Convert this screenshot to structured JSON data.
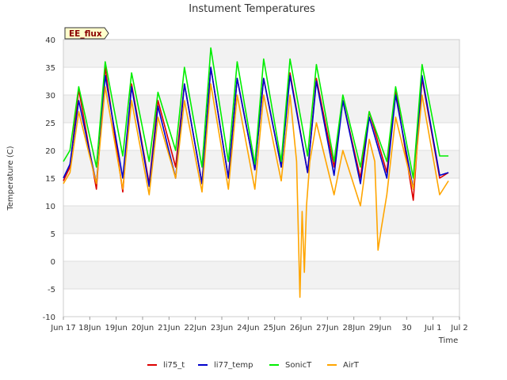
{
  "chart_data": {
    "type": "line",
    "title": "Instument Temperatures",
    "xlabel": "Time",
    "ylabel": "Temperature (C)",
    "badge": "EE_flux",
    "ylim": [
      -10,
      40
    ],
    "xlim": [
      "2024-06-17",
      "2024-07-02"
    ],
    "y_ticks": [
      -10,
      -5,
      0,
      5,
      10,
      15,
      20,
      25,
      30,
      35,
      40
    ],
    "x_ticks": [
      {
        "label": "Jun 17",
        "date": "2024-06-17"
      },
      {
        "label": "18Jun",
        "date": "2024-06-18"
      },
      {
        "label": "19Jun",
        "date": "2024-06-19"
      },
      {
        "label": "20Jun",
        "date": "2024-06-20"
      },
      {
        "label": "21Jun",
        "date": "2024-06-21"
      },
      {
        "label": "22Jun",
        "date": "2024-06-22"
      },
      {
        "label": "23Jun",
        "date": "2024-06-23"
      },
      {
        "label": "24Jun",
        "date": "2024-06-24"
      },
      {
        "label": "25Jun",
        "date": "2024-06-25"
      },
      {
        "label": "26Jun",
        "date": "2024-06-26"
      },
      {
        "label": "27Jun",
        "date": "2024-06-27"
      },
      {
        "label": "28Jun",
        "date": "2024-06-28"
      },
      {
        "label": "29Jun",
        "date": "2024-06-29"
      },
      {
        "label": "30",
        "date": "2024-06-30"
      },
      {
        "label": "Jul 1",
        "date": "2024-07-01"
      },
      {
        "label": "Jul 2",
        "date": "2024-07-02"
      }
    ],
    "grid": true,
    "background_bands": true,
    "legend_position": "bottom",
    "series": [
      {
        "name": "li75_t",
        "color": "#dd0000",
        "x": [
          "2024-06-17 00:00",
          "2024-06-17 06:00",
          "2024-06-17 14:00",
          "2024-06-18 06:00",
          "2024-06-18 14:00",
          "2024-06-19 06:00",
          "2024-06-19 14:00",
          "2024-06-20 06:00",
          "2024-06-20 14:00",
          "2024-06-21 06:00",
          "2024-06-21 14:00",
          "2024-06-22 06:00",
          "2024-06-22 14:00",
          "2024-06-23 06:00",
          "2024-06-23 14:00",
          "2024-06-24 06:00",
          "2024-06-24 14:00",
          "2024-06-25 06:00",
          "2024-06-25 14:00",
          "2024-06-26 06:00",
          "2024-06-26 14:00",
          "2024-06-27 06:00",
          "2024-06-27 14:00",
          "2024-06-28 06:00",
          "2024-06-28 14:00",
          "2024-06-29 06:00",
          "2024-06-29 14:00",
          "2024-06-30 06:00",
          "2024-06-30 14:00",
          "2024-07-01 06:00",
          "2024-07-01 14:00"
        ],
        "y": [
          14.5,
          17,
          31,
          13,
          35,
          12.5,
          32,
          14,
          29,
          17,
          32,
          14,
          35,
          15,
          33,
          16.5,
          33,
          17,
          34,
          16,
          33,
          17,
          29,
          15,
          27,
          16,
          31,
          11,
          33,
          15,
          16
        ]
      },
      {
        "name": "li77_temp",
        "color": "#0000cc",
        "x": [
          "2024-06-17 00:00",
          "2024-06-17 06:00",
          "2024-06-17 14:00",
          "2024-06-18 06:00",
          "2024-06-18 14:00",
          "2024-06-19 06:00",
          "2024-06-19 14:00",
          "2024-06-20 06:00",
          "2024-06-20 14:00",
          "2024-06-21 06:00",
          "2024-06-21 14:00",
          "2024-06-22 06:00",
          "2024-06-22 14:00",
          "2024-06-23 06:00",
          "2024-06-23 14:00",
          "2024-06-24 06:00",
          "2024-06-24 14:00",
          "2024-06-25 06:00",
          "2024-06-25 14:00",
          "2024-06-26 06:00",
          "2024-06-26 14:00",
          "2024-06-27 06:00",
          "2024-06-27 14:00",
          "2024-06-28 06:00",
          "2024-06-28 14:00",
          "2024-06-29 06:00",
          "2024-06-29 14:00",
          "2024-06-30 06:00",
          "2024-06-30 14:00",
          "2024-07-01 06:00",
          "2024-07-01 14:00"
        ],
        "y": [
          15,
          17.5,
          29,
          14,
          33.5,
          15,
          31.5,
          13.5,
          28,
          15,
          32,
          14,
          35,
          15,
          33,
          16.5,
          33,
          17,
          33.5,
          16,
          32.5,
          15.5,
          29,
          14,
          26,
          15,
          30,
          13,
          33.5,
          15.5,
          16
        ]
      },
      {
        "name": "SonicT",
        "color": "#00ee00",
        "x": [
          "2024-06-17 00:00",
          "2024-06-17 06:00",
          "2024-06-17 14:00",
          "2024-06-18 06:00",
          "2024-06-18 14:00",
          "2024-06-19 06:00",
          "2024-06-19 14:00",
          "2024-06-20 06:00",
          "2024-06-20 14:00",
          "2024-06-21 06:00",
          "2024-06-21 14:00",
          "2024-06-22 06:00",
          "2024-06-22 14:00",
          "2024-06-23 06:00",
          "2024-06-23 14:00",
          "2024-06-24 06:00",
          "2024-06-24 14:00",
          "2024-06-25 06:00",
          "2024-06-25 14:00",
          "2024-06-26 06:00",
          "2024-06-26 14:00",
          "2024-06-27 06:00",
          "2024-06-27 14:00",
          "2024-06-28 06:00",
          "2024-06-28 14:00",
          "2024-06-29 06:00",
          "2024-06-29 14:00",
          "2024-06-30 06:00",
          "2024-06-30 14:00",
          "2024-07-01 06:00",
          "2024-07-01 14:00"
        ],
        "y": [
          18,
          20,
          31.5,
          17,
          36,
          19,
          34,
          18,
          30.5,
          20,
          35,
          17,
          38.5,
          18,
          36,
          17.5,
          36.5,
          18,
          36.5,
          19,
          35.5,
          18,
          30,
          17,
          27,
          18,
          31.5,
          15,
          35.5,
          19,
          19
        ]
      },
      {
        "name": "AirT",
        "color": "#ffa500",
        "x": [
          "2024-06-17 00:00",
          "2024-06-17 06:00",
          "2024-06-17 14:00",
          "2024-06-18 06:00",
          "2024-06-18 14:00",
          "2024-06-19 06:00",
          "2024-06-19 14:00",
          "2024-06-20 06:00",
          "2024-06-20 14:00",
          "2024-06-21 06:00",
          "2024-06-21 14:00",
          "2024-06-22 06:00",
          "2024-06-22 14:00",
          "2024-06-23 06:00",
          "2024-06-23 14:00",
          "2024-06-24 06:00",
          "2024-06-24 14:00",
          "2024-06-25 06:00",
          "2024-06-25 14:00",
          "2024-06-25 20:00",
          "2024-06-25 23:00",
          "2024-06-26 01:00",
          "2024-06-26 03:00",
          "2024-06-26 05:00",
          "2024-06-26 08:00",
          "2024-06-26 14:00",
          "2024-06-27 06:00",
          "2024-06-27 14:00",
          "2024-06-28 06:00",
          "2024-06-28 14:00",
          "2024-06-28 19:00",
          "2024-06-28 22:00",
          "2024-06-29 01:00",
          "2024-06-29 06:00",
          "2024-06-29 14:00",
          "2024-06-30 06:00",
          "2024-06-30 14:00",
          "2024-07-01 06:00",
          "2024-07-01 14:00"
        ],
        "y": [
          14,
          16,
          27,
          14,
          31.5,
          13,
          29,
          12,
          26,
          15,
          29,
          12.5,
          32,
          13,
          30,
          13,
          30,
          14.5,
          30,
          18,
          -6.5,
          9,
          -2,
          10,
          18,
          25,
          12,
          20,
          10,
          22,
          18,
          2,
          6,
          12,
          26,
          13,
          30,
          12,
          14.5
        ]
      }
    ]
  }
}
